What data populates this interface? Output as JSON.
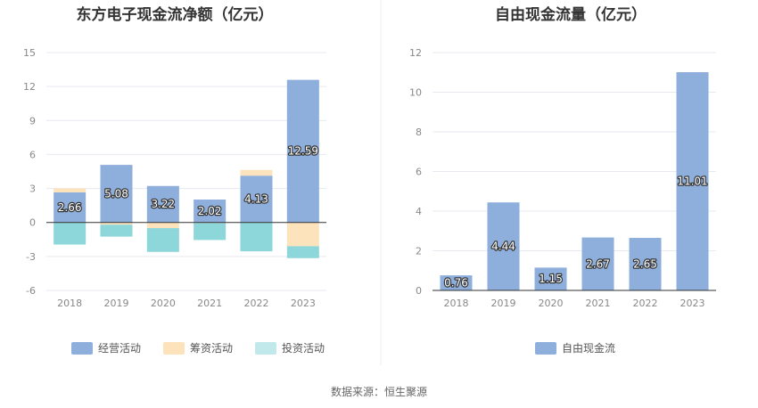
{
  "source": "数据来源：恒生聚源",
  "chart_data": [
    {
      "type": "bar",
      "stacked": true,
      "title": "东方电子现金流净额（亿元）",
      "categories": [
        "2018",
        "2019",
        "2020",
        "2021",
        "2022",
        "2023"
      ],
      "ylim": [
        -6,
        15
      ],
      "yticks": [
        "15",
        "12",
        "9",
        "6",
        "3",
        "0",
        "-3",
        "-6"
      ],
      "ytick_values": [
        15,
        12,
        9,
        6,
        3,
        0,
        -3,
        -6
      ],
      "grid": true,
      "legend_position": "bottom",
      "series": [
        {
          "name": "经营活动",
          "color": "#8eaedc",
          "values": [
            2.66,
            5.08,
            3.22,
            2.02,
            4.13,
            12.59
          ],
          "labels": [
            "2.66",
            "5.08",
            "3.22",
            "2.02",
            "4.13",
            "12.59"
          ]
        },
        {
          "name": "筹资活动",
          "color": "#fde3bb",
          "values": [
            0.35,
            -0.2,
            -0.5,
            -0.05,
            0.5,
            -2.1
          ]
        },
        {
          "name": "投资活动",
          "color": "#8dd6d9",
          "values": [
            -1.95,
            -1.05,
            -2.1,
            -1.5,
            -2.55,
            -1.05
          ]
        }
      ],
      "legend": [
        {
          "name": "经营活动",
          "color": "#8eaedc"
        },
        {
          "name": "筹资活动",
          "color": "#fde3bb"
        },
        {
          "name": "投资活动",
          "color": "#c1e8ea"
        }
      ]
    },
    {
      "type": "bar",
      "title": "自由现金流量（亿元）",
      "categories": [
        "2018",
        "2019",
        "2020",
        "2021",
        "2022",
        "2023"
      ],
      "ylim": [
        0,
        12
      ],
      "yticks": [
        "12",
        "10",
        "8",
        "6",
        "4",
        "2",
        "0"
      ],
      "ytick_values": [
        12,
        10,
        8,
        6,
        4,
        2,
        0
      ],
      "grid": true,
      "legend_position": "bottom",
      "series": [
        {
          "name": "自由现金流",
          "color": "#8eaedc",
          "values": [
            0.76,
            4.44,
            1.15,
            2.67,
            2.65,
            11.01
          ],
          "labels": [
            "0.76",
            "4.44",
            "1.15",
            "2.67",
            "2.65",
            "11.01"
          ]
        }
      ],
      "legend": [
        {
          "name": "自由现金流",
          "color": "#8eaedc"
        }
      ]
    }
  ]
}
